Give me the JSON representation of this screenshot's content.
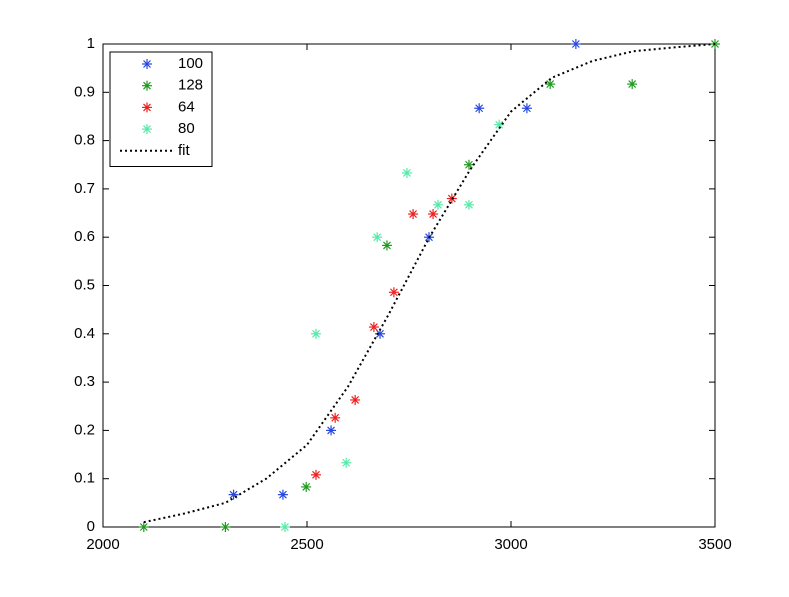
{
  "chart_data": {
    "type": "scatter",
    "xlim": [
      2000,
      3500
    ],
    "xticks": [
      2000,
      2500,
      3000,
      3500
    ],
    "ylim": [
      0,
      1
    ],
    "yticks": [
      0,
      0.1,
      0.2,
      0.3,
      0.4,
      0.5,
      0.6,
      0.7,
      0.8,
      0.9,
      1
    ],
    "grid": false,
    "legend": "upper-left",
    "series": [
      {
        "name": "100",
        "color": "#2747e0",
        "marker": "*",
        "x": [
          2320,
          2441,
          2559,
          2679,
          2799,
          2922,
          3039,
          3159
        ],
        "values": [
          0.067,
          0.067,
          0.2,
          0.4,
          0.6,
          0.867,
          0.867,
          1
        ]
      },
      {
        "name": "128",
        "color": "#1f9a1f",
        "marker": "*",
        "x": [
          2100,
          2300,
          2498,
          2696,
          2897,
          3096,
          3297,
          3500
        ],
        "values": [
          0,
          0,
          0.083,
          0.583,
          0.75,
          0.917,
          0.917,
          1
        ]
      },
      {
        "name": "64",
        "color": "#f02020",
        "marker": "*",
        "x": [
          2522,
          2569,
          2618,
          2664,
          2713,
          2760,
          2809,
          2855
        ],
        "values": [
          0.108,
          0.226,
          0.263,
          0.414,
          0.486,
          0.648,
          0.648,
          0.68
        ]
      },
      {
        "name": "80",
        "color": "#55eaa8",
        "marker": "*",
        "x": [
          2446,
          2522,
          2596,
          2672,
          2745,
          2821,
          2897,
          2971
        ],
        "values": [
          0,
          0.4,
          0.133,
          0.6,
          0.733,
          0.667,
          0.667,
          0.833
        ]
      },
      {
        "name": "fit",
        "color": "#000000",
        "line_style": "dotted",
        "x": [
          2100,
          2200,
          2300,
          2400,
          2500,
          2600,
          2700,
          2800,
          2900,
          3000,
          3100,
          3200,
          3300,
          3400,
          3500
        ],
        "values": [
          0.01,
          0.028,
          0.05,
          0.1,
          0.17,
          0.29,
          0.44,
          0.6,
          0.74,
          0.86,
          0.93,
          0.965,
          0.985,
          0.993,
          1
        ]
      }
    ]
  }
}
